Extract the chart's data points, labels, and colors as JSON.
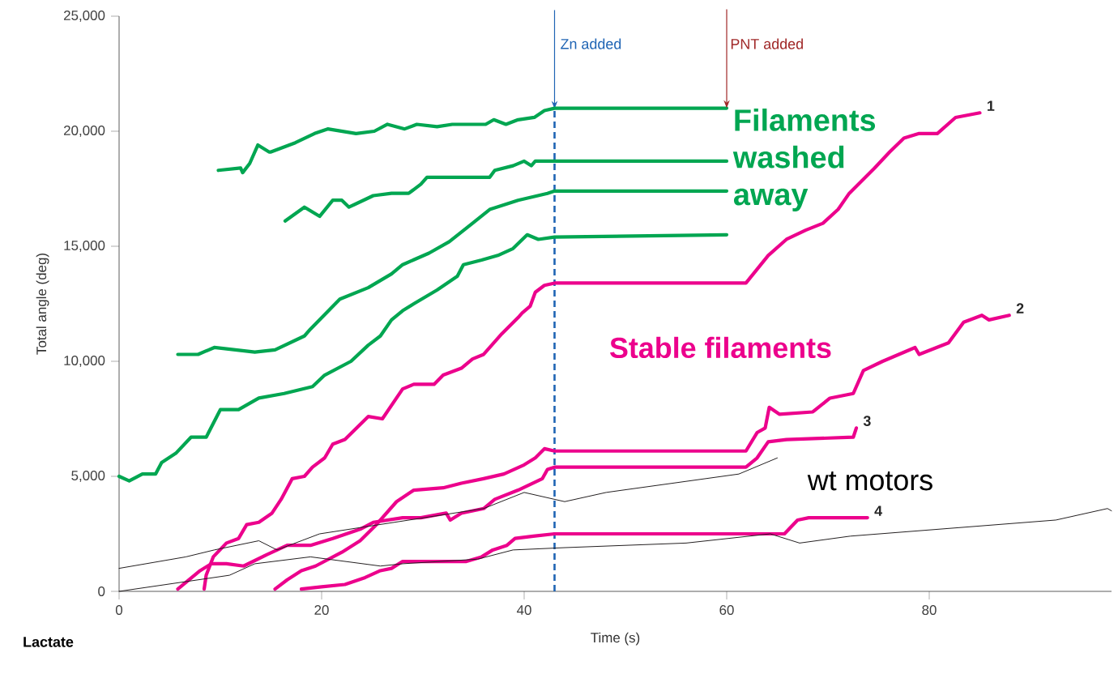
{
  "chart_data": {
    "type": "line",
    "xlabel": "Time (s)",
    "ylabel": "Total angle (deg)",
    "xlim": [
      0,
      98
    ],
    "ylim": [
      0,
      25000
    ],
    "xticks": [
      0,
      20,
      40,
      60,
      80
    ],
    "yticks": [
      {
        "value": 0,
        "label": "0"
      },
      {
        "value": 5000,
        "label": "5,000"
      },
      {
        "value": 10000,
        "label": "10,000"
      },
      {
        "value": 15000,
        "label": "15,000"
      },
      {
        "value": 20000,
        "label": "20,000"
      },
      {
        "value": 25000,
        "label": "25,000"
      }
    ],
    "series": [
      {
        "color": "#00a651",
        "x": [
          9.8,
          12.0,
          12.2,
          12.9,
          13.7,
          14.8,
          15.0,
          17.4,
          19.3,
          20.6,
          23.4,
          25.2,
          26.5,
          28.2,
          29.4,
          31.4,
          32.9,
          36.2,
          37.0,
          38.2,
          39.4,
          41.0,
          42.0,
          43,
          60
        ],
        "values": [
          18300,
          18400,
          18200,
          18600,
          19400,
          19100,
          19100,
          19500,
          19900,
          20100,
          19900,
          20000,
          20300,
          20100,
          20300,
          20200,
          20300,
          20300,
          20500,
          20300,
          20500,
          20600,
          20900,
          21000,
          21000
        ]
      },
      {
        "color": "#00a651",
        "x": [
          16.4,
          18.3,
          19.8,
          21.1,
          22.0,
          22.7,
          25.1,
          26.9,
          28.6,
          29.8,
          30.4,
          36.6,
          37.1,
          38.9,
          40.0,
          40.7,
          41.1,
          43,
          60
        ],
        "values": [
          16100,
          16700,
          16300,
          17000,
          17000,
          16700,
          17200,
          17300,
          17300,
          17700,
          18000,
          18000,
          18300,
          18500,
          18700,
          18500,
          18700,
          18700,
          18700
        ]
      },
      {
        "color": "#00a651",
        "x": [
          5.8,
          7.8,
          9.4,
          13.4,
          15.4,
          18.3,
          18.9,
          21.8,
          24.6,
          26.9,
          28.0,
          30.6,
          32.6,
          34.9,
          36.6,
          39.4,
          42.3,
          43,
          60
        ],
        "values": [
          10300,
          10300,
          10600,
          10400,
          10500,
          11100,
          11400,
          12700,
          13200,
          13800,
          14200,
          14700,
          15200,
          16000,
          16600,
          17000,
          17300,
          17400,
          17400
        ]
      },
      {
        "color": "#00a651",
        "x": [
          0,
          1.0,
          2.3,
          3.6,
          4.2,
          5.6,
          7.1,
          8.6,
          10.0,
          11.8,
          13.8,
          16.3,
          19.1,
          20.3,
          22.9,
          24.6,
          25.8,
          26.9,
          28.0,
          29.1,
          31.4,
          33.4,
          34.0,
          35.8,
          37.4,
          38.9,
          40.3,
          41.4,
          43,
          60
        ],
        "values": [
          5000,
          4800,
          5100,
          5100,
          5600,
          6000,
          6700,
          6700,
          7900,
          7900,
          8400,
          8600,
          8900,
          9400,
          10000,
          10700,
          11100,
          11800,
          12200,
          12500,
          13100,
          13700,
          14200,
          14400,
          14600,
          14900,
          15500,
          15300,
          15400,
          15500
        ]
      },
      {
        "name": "1",
        "color": "#ec008c",
        "x": [
          8.4,
          8.6,
          9.3,
          10.6,
          11.8,
          12.6,
          13.8,
          15.1,
          16.0,
          17.1,
          18.3,
          19.1,
          20.3,
          21.1,
          22.3,
          24.6,
          26.0,
          28.0,
          29.1,
          31.1,
          32.0,
          33.8,
          34.9,
          36.0,
          37.8,
          39.4,
          39.8,
          40.6,
          41.1,
          42.0,
          43,
          61.9,
          64.1,
          65.9,
          67.8,
          69.5,
          71.0,
          72.1,
          74.6,
          76.1,
          77.5,
          79.0,
          80.8,
          82.6,
          85.0
        ],
        "values": [
          100,
          700,
          1500,
          2100,
          2300,
          2900,
          3000,
          3400,
          4000,
          4900,
          5000,
          5400,
          5800,
          6400,
          6600,
          7600,
          7500,
          8800,
          9000,
          9000,
          9400,
          9700,
          10100,
          10300,
          11200,
          11900,
          12100,
          12400,
          13000,
          13300,
          13400,
          13400,
          14600,
          15300,
          15700,
          16000,
          16600,
          17300,
          18400,
          19100,
          19700,
          19900,
          19900,
          20600,
          20800
        ]
      },
      {
        "name": "2",
        "color": "#ec008c",
        "x": [
          15.4,
          16.6,
          18.0,
          19.4,
          22.0,
          23.8,
          25.4,
          27.4,
          29.1,
          32.0,
          33.8,
          36.0,
          38.0,
          40.0,
          41.1,
          42.0,
          43,
          61.9,
          63.0,
          63.8,
          64.2,
          65.2,
          68.5,
          70.2,
          72.5,
          73.5,
          75.4,
          78.6,
          79.0,
          81.9,
          83.4,
          85.2,
          85.9,
          87.9
        ],
        "values": [
          100,
          500,
          900,
          1100,
          1700,
          2200,
          2900,
          3900,
          4400,
          4500,
          4700,
          4900,
          5100,
          5500,
          5800,
          6200,
          6100,
          6100,
          6900,
          7100,
          8000,
          7700,
          7800,
          8400,
          8600,
          9600,
          10000,
          10600,
          10300,
          10800,
          11700,
          12000,
          11800,
          12000
        ]
      },
      {
        "name": "3",
        "color": "#ec008c",
        "x": [
          5.8,
          8.0,
          9.1,
          10.6,
          12.3,
          14.6,
          16.6,
          18.9,
          21.1,
          23.8,
          25.1,
          28.0,
          29.8,
          32.3,
          32.7,
          33.8,
          36.0,
          37.1,
          39.4,
          41.8,
          42.3,
          43,
          61.9,
          63.0,
          64.1,
          65.9,
          72.5,
          72.8
        ],
        "values": [
          100,
          900,
          1200,
          1200,
          1100,
          1600,
          2000,
          2000,
          2300,
          2700,
          3000,
          3200,
          3200,
          3400,
          3100,
          3400,
          3600,
          4000,
          4400,
          4900,
          5300,
          5400,
          5400,
          5800,
          6500,
          6600,
          6700,
          7100
        ]
      },
      {
        "name": "4",
        "color": "#ec008c",
        "x": [
          18.0,
          20.0,
          22.3,
          24.3,
          25.8,
          26.9,
          28.0,
          30.9,
          34.3,
          35.8,
          36.9,
          38.3,
          39.1,
          40.9,
          43,
          65.7,
          67.0,
          68.1,
          73.9
        ],
        "values": [
          100,
          200,
          300,
          600,
          900,
          1000,
          1300,
          1300,
          1300,
          1500,
          1800,
          2000,
          2300,
          2400,
          2500,
          2500,
          3100,
          3200,
          3200
        ]
      },
      {
        "color": "#231f20",
        "x": [
          0,
          6.6,
          9.4,
          13.8,
          15.6,
          19.8,
          36.0,
          40.0,
          44.0,
          48.1,
          61.2,
          65.0
        ],
        "values": [
          1000,
          1500,
          1800,
          2200,
          1800,
          2500,
          3600,
          4300,
          3900,
          4300,
          5100,
          5800
        ]
      },
      {
        "color": "#231f20",
        "x": [
          0,
          10.9,
          13.4,
          18.9,
          25.8,
          28.0,
          35.4,
          38.9,
          44.0,
          56.0,
          64.3,
          67.2,
          72.2,
          92.5,
          97.6,
          98
        ],
        "values": [
          0,
          700,
          1200,
          1500,
          1100,
          1200,
          1400,
          1800,
          1900,
          2100,
          2500,
          2100,
          2400,
          3100,
          3600,
          3500
        ]
      }
    ],
    "ref_lines": [
      {
        "axis": "x",
        "value": 43,
        "label": "Zn added",
        "color": "#1f64b4",
        "line_style": "dashed"
      }
    ],
    "annotations": [
      "Filaments washed away",
      "Stable filaments",
      "wt motors",
      "Lactate",
      "PNT added"
    ]
  }
}
